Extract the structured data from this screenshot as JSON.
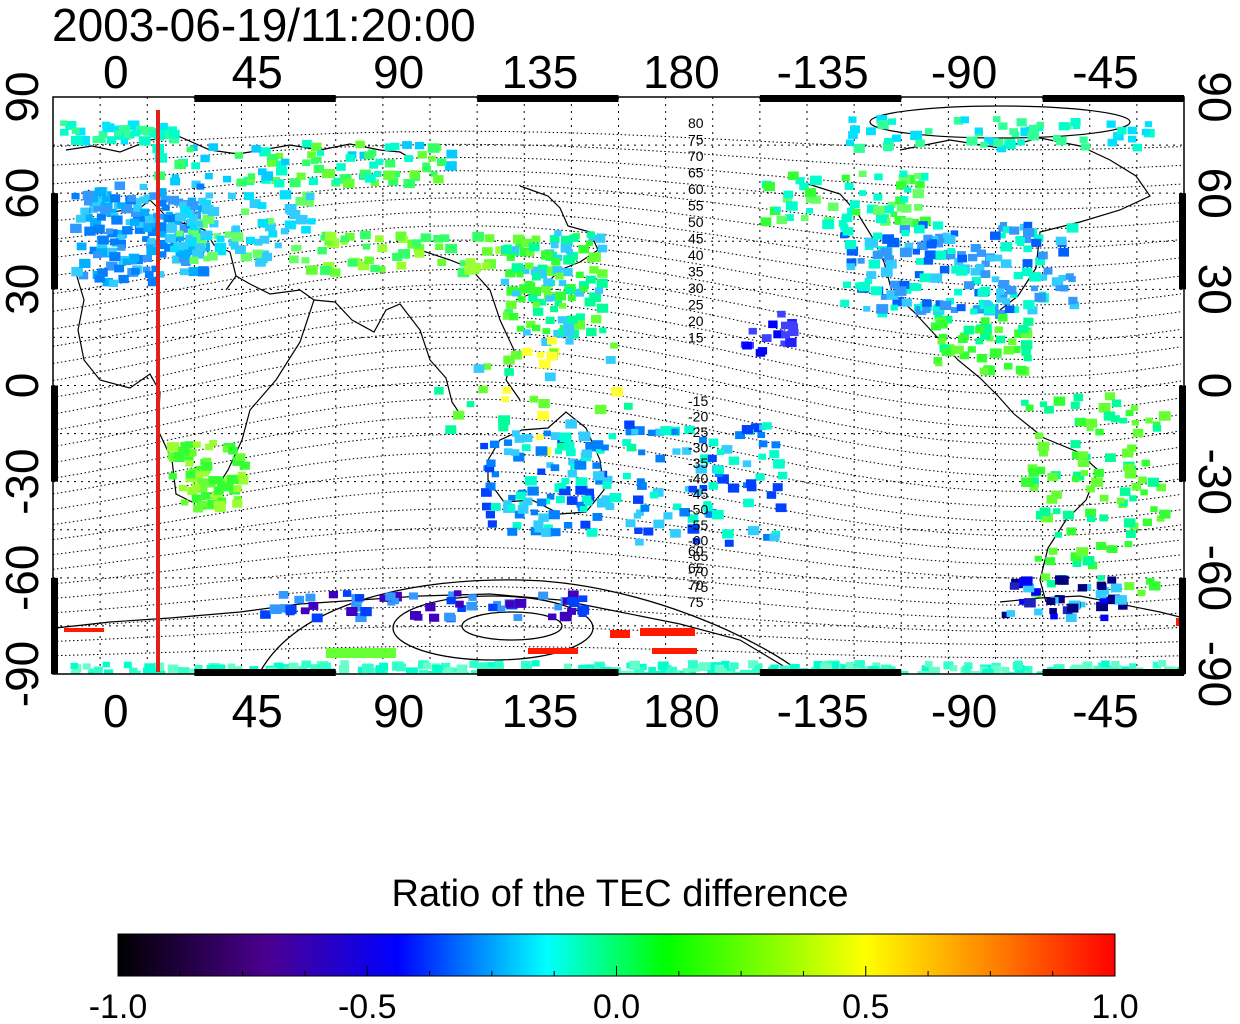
{
  "figure": {
    "timestamp": "2003-06-19/11:20:00",
    "colorbar_title": "Ratio of the TEC difference"
  },
  "axes": {
    "lon_ticks": [
      "0",
      "45",
      "90",
      "135",
      "180",
      "-135",
      "-90",
      "-45"
    ],
    "lat_ticks": [
      "90",
      "60",
      "30",
      "0",
      "-30",
      "-60",
      "-90"
    ]
  },
  "colorbar": {
    "range": [
      -1.0,
      1.0
    ],
    "tick_labels": [
      "-1.0",
      "-0.5",
      "0.0",
      "0.5",
      "1.0"
    ],
    "colors": [
      "#000000",
      "#4b0090",
      "#0000ff",
      "#00ffff",
      "#00ff00",
      "#ffff00",
      "#ff0000"
    ]
  },
  "reference_meridian_color": "#e0201a",
  "contour_labels": {
    "north": [
      "80",
      "75",
      "70",
      "65",
      "60",
      "55",
      "50",
      "45",
      "40",
      "35",
      "30",
      "25",
      "20",
      "15"
    ],
    "south": [
      "-15",
      "-20",
      "-25",
      "-30",
      "-35",
      "-40",
      "-45",
      "-50",
      "-55",
      "-60",
      "-65",
      "-70",
      "-75"
    ],
    "south_high": [
      "60",
      "65",
      "70",
      "75"
    ]
  }
}
